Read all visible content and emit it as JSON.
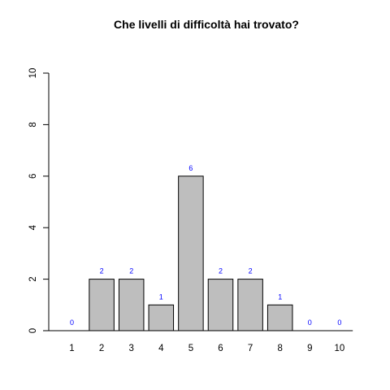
{
  "chart_data": {
    "type": "bar",
    "title": "Che livelli di difficoltà hai trovato?",
    "xlabel": "",
    "ylabel": "",
    "categories": [
      "1",
      "2",
      "3",
      "4",
      "5",
      "6",
      "7",
      "8",
      "9",
      "10"
    ],
    "values": [
      0,
      2,
      2,
      1,
      6,
      2,
      2,
      1,
      0,
      0
    ],
    "data_labels": [
      "0",
      "2",
      "2",
      "1",
      "6",
      "2",
      "2",
      "1",
      "0",
      "0"
    ],
    "ylim": [
      0,
      10
    ],
    "yticks": [
      "0",
      "2",
      "4",
      "6",
      "8",
      "10"
    ],
    "grid": false,
    "legend": "none",
    "colors": {
      "bar_fill": "#bebebe",
      "bar_stroke": "#000000",
      "data_label": "#0000ff",
      "axis": "#000000"
    }
  }
}
